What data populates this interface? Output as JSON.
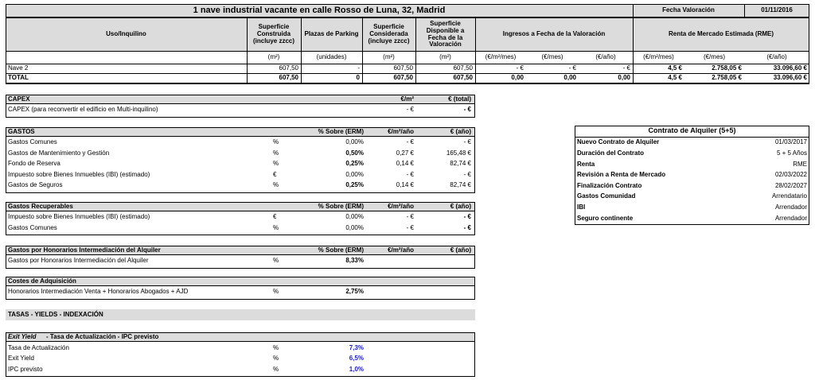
{
  "header": {
    "title": "1 nave industrial vacante en calle Rosso de Luna, 32, Madrid",
    "fecha_label": "Fecha Valoración",
    "fecha": "01/11/2016"
  },
  "main_table": {
    "headers": [
      "Uso/Inquilino",
      "Superficie Construida (incluye zzcc)",
      "Plazas de Parking",
      "Superficie Considerada (incluye zzcc)",
      "Superficie Disponible a Fecha de la Valoración",
      "Ingresos a Fecha de la Valoración",
      "Renta de Mercado Estimada (RME)"
    ],
    "units": [
      "(m²)",
      "(unidades)",
      "(m²)",
      "(m²)",
      "(€/m²/mes)",
      "(€/mes)",
      "(€/año)",
      "(€/m²/mes)",
      "(€/mes)",
      "(€/año)"
    ],
    "rows": [
      [
        "Nave 2",
        "607,50",
        "-",
        "607,50",
        "607,50",
        "-   €",
        "-   €",
        "-   €",
        "4,5 €",
        "2.758,05 €",
        "33.096,60 €"
      ],
      [
        "TOTAL",
        "607,50",
        "0",
        "607,50",
        "607,50",
        "0,00",
        "0,00",
        "0,00",
        "4,5 €",
        "2.758,05 €",
        "33.096,60 €"
      ]
    ]
  },
  "capex": {
    "header": [
      "CAPEX",
      "€/m²",
      "€ (total)"
    ],
    "rows": [
      [
        "CAPEX (para reconvertir el edificio en Multi-inquilino)",
        "-   €",
        "-   €"
      ]
    ]
  },
  "gastos": {
    "header": [
      "GASTOS",
      "% Sobre (ERM)",
      "€/m²/año",
      "€ (año)"
    ],
    "rows": [
      [
        "Gastos Comunes",
        "%",
        "0,00%",
        "-   €",
        "-   €"
      ],
      [
        "Gastos de Mantenimiento y Gestión",
        "%",
        "0,50%",
        "0,27 €",
        "165,48 €"
      ],
      [
        "Fondo de Reserva",
        "%",
        "0,25%",
        "0,14 €",
        "82,74 €"
      ],
      [
        "Impuesto sobre Bienes Inmuebles (IBI) (estimado)",
        "€",
        "0,00%",
        "-   €",
        "-   €"
      ],
      [
        "Gastos de Seguros",
        "%",
        "0,25%",
        "0,14 €",
        "82,74 €"
      ]
    ]
  },
  "gastos_recuperables": {
    "header": [
      "Gastos Recuperables",
      "% Sobre (ERM)",
      "€/m²/año",
      "€ (año)"
    ],
    "rows": [
      [
        "Impuesto sobre Bienes Inmuebles (IBI) (estimado)",
        "€",
        "0,00%",
        "-   €",
        "-   €"
      ],
      [
        "Gastos Comunes",
        "%",
        "0,00%",
        "-   €",
        "-   €"
      ]
    ]
  },
  "honorarios": {
    "header": [
      "Gastos por Honorarios Intermediación del Alquiler",
      "% Sobre (ERM)",
      "€/m²/año",
      "€ (año)"
    ],
    "rows": [
      [
        "Gastos por Honorarios Intermediación del Alquiler",
        "%",
        "8,33%"
      ]
    ]
  },
  "costes_adquisicion": {
    "header": [
      "Costes de Adquisición"
    ],
    "rows": [
      [
        "Honorarios Intermediación Venta + Honorarios Abogados + AJD",
        "%",
        "2,75%"
      ]
    ]
  },
  "tasas_band": "TASAS - YIELDS - INDEXACIÓN",
  "yields": {
    "header": [
      "Exit Yield",
      "- Tasa de Actualización - IPC previsto"
    ],
    "rows": [
      [
        "Tasa de Actualización",
        "%",
        "7,3%"
      ],
      [
        "Exit Yield",
        "%",
        "6,5%"
      ],
      [
        "IPC previsto",
        "%",
        "1,0%"
      ]
    ]
  },
  "contrato": {
    "title": "Contrato de Alquiler (5+5)",
    "rows": [
      [
        "Nuevo Contrato de Alquiler",
        "01/03/2017"
      ],
      [
        "Duración del Contrato",
        "5 + 5 Años"
      ],
      [
        "Renta",
        "RME"
      ],
      [
        "Revisión a Renta de Mercado",
        "02/03/2022"
      ],
      [
        "Finalización Contrato",
        "28/02/2027"
      ],
      [
        "Gastos Comunidad",
        "Arrendatario"
      ],
      [
        "IBI",
        "Arrendador"
      ],
      [
        "Seguro continente",
        "Arrendador"
      ]
    ]
  }
}
